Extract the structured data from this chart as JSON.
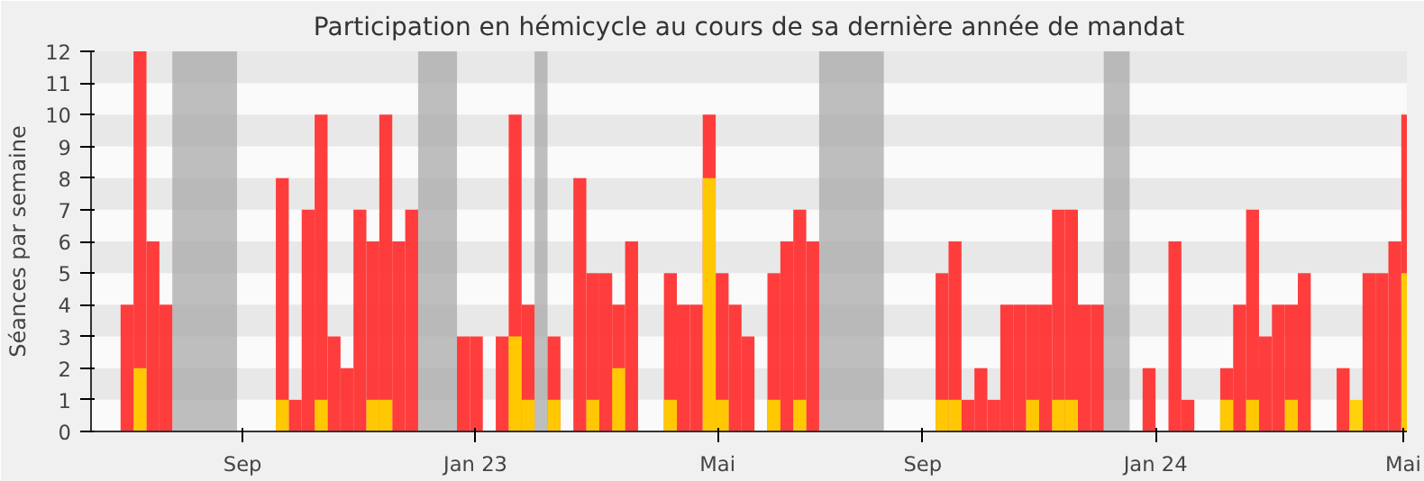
{
  "chart_data": {
    "type": "bar",
    "title": "Participation en hémicycle au cours de sa dernière année de mandat",
    "ylabel": "Séances par semaine",
    "series": [
      {
        "color": "#ff3333",
        "x": [
          "2022-06-27",
          "2022-07-04",
          "2022-07-11",
          "2022-07-18",
          "2022-09-19",
          "2022-09-26",
          "2022-10-03",
          "2022-10-10",
          "2022-10-17",
          "2022-10-24",
          "2022-10-31",
          "2022-11-07",
          "2022-11-14",
          "2022-11-21",
          "2022-11-28",
          "2022-12-26",
          "2023-01-02",
          "2023-01-16",
          "2023-01-23",
          "2023-01-30",
          "2023-02-13",
          "2023-02-27",
          "2023-03-06",
          "2023-03-13",
          "2023-03-20",
          "2023-03-27",
          "2023-04-17",
          "2023-04-24",
          "2023-05-01",
          "2023-05-08",
          "2023-05-15",
          "2023-05-22",
          "2023-05-29",
          "2023-06-12",
          "2023-06-19",
          "2023-06-26",
          "2023-07-03",
          "2023-09-11",
          "2023-09-18",
          "2023-09-25",
          "2023-10-02",
          "2023-10-09",
          "2023-10-16",
          "2023-10-23",
          "2023-10-30",
          "2023-11-06",
          "2023-11-13",
          "2023-11-20",
          "2023-11-27",
          "2023-12-04",
          "2024-01-01",
          "2024-01-15",
          "2024-01-22",
          "2024-02-12",
          "2024-02-19",
          "2024-02-26",
          "2024-03-04",
          "2024-03-11",
          "2024-03-18",
          "2024-03-25",
          "2024-04-15",
          "2024-04-22",
          "2024-04-29",
          "2024-05-06",
          "2024-05-13",
          "2024-05-20"
        ],
        "values": [
          4,
          12,
          6,
          4,
          8,
          1,
          7,
          10,
          3,
          2,
          7,
          6,
          10,
          6,
          7,
          3,
          3,
          3,
          10,
          4,
          3,
          8,
          5,
          5,
          4,
          6,
          5,
          4,
          4,
          10,
          5,
          4,
          3,
          5,
          6,
          7,
          6,
          5,
          6,
          1,
          2,
          1,
          4,
          4,
          4,
          4,
          7,
          7,
          4,
          4,
          2,
          6,
          1,
          2,
          4,
          7,
          3,
          4,
          4,
          5,
          2,
          null,
          5,
          5,
          6,
          10
        ]
      },
      {
        "color": "#ffd000",
        "x": [
          "2022-07-04",
          "2022-09-19",
          "2022-10-10",
          "2022-11-07",
          "2022-11-14",
          "2023-01-23",
          "2023-01-30",
          "2023-02-13",
          "2023-03-06",
          "2023-03-20",
          "2023-04-17",
          "2023-05-08",
          "2023-05-15",
          "2023-06-12",
          "2023-06-26",
          "2023-09-11",
          "2023-09-18",
          "2023-10-30",
          "2023-11-13",
          "2023-11-20",
          "2024-02-12",
          "2024-02-26",
          "2024-03-18",
          "2024-04-22",
          "2024-05-20"
        ],
        "values": [
          2,
          1,
          1,
          1,
          1,
          3,
          1,
          1,
          1,
          2,
          1,
          8,
          1,
          1,
          1,
          1,
          1,
          1,
          1,
          1,
          1,
          1,
          1,
          1,
          5
        ]
      }
    ],
    "xlim": [
      "2022-06-11",
      "2024-05-23"
    ],
    "xticks": [
      {
        "value": "2022-09-01",
        "label": "Sep"
      },
      {
        "value": "2023-01-05",
        "label": "Jan 23"
      },
      {
        "value": "2023-05-16",
        "label": "Mai"
      },
      {
        "value": "2023-09-04",
        "label": "Sep"
      },
      {
        "value": "2024-01-08",
        "label": "Jan 24"
      },
      {
        "value": "2024-05-21",
        "label": "Mai"
      }
    ],
    "ylim": [
      0,
      12
    ],
    "yticks": [
      0,
      1,
      2,
      3,
      4,
      5,
      6,
      7,
      8,
      9,
      10,
      11,
      12
    ],
    "bands": [
      {
        "axis": "x",
        "from": "2022-07-25",
        "to": "2022-08-29",
        "color": "#aaaaaa"
      },
      {
        "axis": "x",
        "from": "2022-12-05",
        "to": "2022-12-26",
        "color": "#aaaaaa"
      },
      {
        "axis": "x",
        "from": "2023-02-06",
        "to": "2023-02-13",
        "color": "#aaaaaa"
      },
      {
        "axis": "x",
        "from": "2023-07-10",
        "to": "2023-08-14",
        "color": "#aaaaaa"
      },
      {
        "axis": "x",
        "from": "2023-12-11",
        "to": "2023-12-25",
        "color": "#aaaaaa"
      }
    ],
    "grid": false
  }
}
